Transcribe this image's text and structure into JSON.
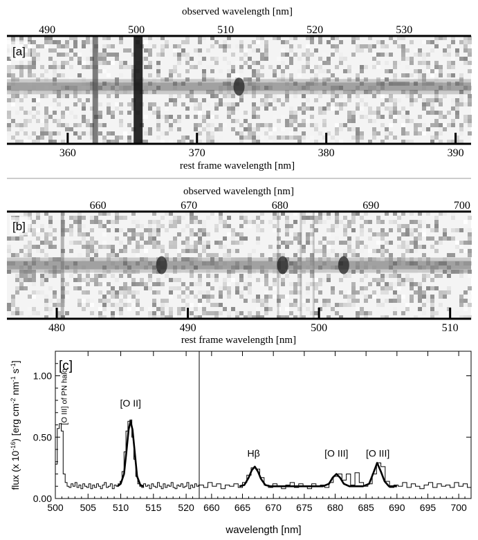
{
  "figure": {
    "panel_a": {
      "label": "[a]",
      "top_axis_label": "observed wavelength [nm]",
      "bottom_axis_label": "rest frame wavelength [nm]",
      "observed_ticks": [
        490,
        500,
        510,
        520,
        530
      ],
      "rest_ticks": [
        360,
        370,
        380,
        390
      ],
      "observed_range": [
        485.5,
        537.5
      ],
      "rest_range": [
        355.3,
        391.2
      ],
      "sky_line_columns_observed": [
        495.4,
        500.2
      ],
      "emission_observed": [
        511.5
      ],
      "noise_seed": 7
    },
    "panel_b": {
      "label": "[b]",
      "top_axis_label": "observed wavelength [nm]",
      "bottom_axis_label": "rest frame wavelength [nm]",
      "observed_ticks": [
        660,
        670,
        680,
        690,
        700
      ],
      "rest_ticks": [
        480,
        490,
        500,
        510
      ],
      "observed_range": [
        650.0,
        701.0
      ],
      "rest_range": [
        476.2,
        511.6
      ],
      "sky_line_columns_observed": [
        656.1,
        679.8,
        682.3,
        683.7
      ],
      "emission_observed": [
        667.0,
        680.3,
        687.0
      ],
      "noise_seed": 23
    },
    "divider_color": "#999999"
  },
  "chart_data": {
    "type": "line",
    "label": "[c]",
    "xlabel": "wavelength [nm]",
    "ylabel": "flux (x 10-16) [erg cm-2 nm-1 s-1]",
    "ylabel_parts": {
      "pre": "flux (x 10",
      "exp1": "-16",
      "mid1": ") [erg cm",
      "exp2": "-2",
      "mid2": " nm",
      "exp3": "-1",
      "mid3": " s",
      "exp4": "-1",
      "post": "]"
    },
    "ylim": [
      0,
      1.2
    ],
    "yticks": [
      "0.00",
      "0.50",
      "1.00"
    ],
    "ytick_values": [
      0,
      0.5,
      1.0
    ],
    "grid": false,
    "left_panel": {
      "xlim": [
        500,
        522
      ],
      "xticks": [
        500,
        505,
        510,
        515,
        520
      ],
      "annotations": [
        {
          "text": "[O II]",
          "x": 511.5,
          "y": 0.75
        }
      ],
      "vertical_annotation": {
        "text": "[O III] of PN halo",
        "x": 501.3,
        "y": 0.6
      },
      "fit_line": {
        "x": [
          509.5,
          510.0,
          510.5,
          510.9,
          511.2,
          511.5,
          511.8,
          512.1,
          512.5,
          513.0,
          513.5
        ],
        "y": [
          0.1,
          0.12,
          0.2,
          0.4,
          0.56,
          0.63,
          0.56,
          0.4,
          0.18,
          0.11,
          0.1
        ]
      },
      "step_spectrum": {
        "x": [
          500.0,
          500.3,
          500.6,
          500.9,
          501.2,
          501.5,
          501.8,
          502.1,
          502.4,
          502.7,
          503.0,
          503.3,
          503.6,
          503.9,
          504.2,
          504.5,
          504.8,
          505.1,
          505.4,
          505.7,
          506.0,
          506.3,
          506.6,
          506.9,
          507.2,
          507.5,
          507.8,
          508.1,
          508.4,
          508.7,
          509.0,
          509.3,
          509.6,
          509.9,
          510.2,
          510.5,
          510.8,
          511.1,
          511.4,
          511.7,
          512.0,
          512.3,
          512.6,
          512.9,
          513.2,
          513.5,
          513.8,
          514.1,
          514.4,
          514.7,
          515.0,
          515.3,
          515.6,
          515.9,
          516.2,
          516.5,
          516.8,
          517.1,
          517.4,
          517.7,
          518.0,
          518.3,
          518.6,
          518.9,
          519.2,
          519.5,
          519.8,
          520.1,
          520.4,
          520.7,
          521.0,
          521.3,
          521.6,
          521.9
        ],
        "y": [
          0.28,
          0.57,
          0.61,
          0.55,
          0.2,
          0.13,
          0.1,
          0.09,
          0.12,
          0.1,
          0.13,
          0.09,
          0.11,
          0.08,
          0.12,
          0.1,
          0.09,
          0.12,
          0.08,
          0.11,
          0.09,
          0.12,
          0.1,
          0.08,
          0.11,
          0.13,
          0.09,
          0.1,
          0.12,
          0.08,
          0.11,
          0.1,
          0.12,
          0.14,
          0.22,
          0.38,
          0.55,
          0.63,
          0.64,
          0.5,
          0.32,
          0.18,
          0.12,
          0.1,
          0.09,
          0.12,
          0.1,
          0.11,
          0.08,
          0.12,
          0.1,
          0.09,
          0.13,
          0.1,
          0.08,
          0.12,
          0.09,
          0.11,
          0.1,
          0.13,
          0.09,
          0.08,
          0.11,
          0.1,
          0.12,
          0.09,
          0.1,
          0.13,
          0.08,
          0.11,
          0.09,
          0.12,
          0.1,
          0.11
        ]
      }
    },
    "right_panel": {
      "xlim": [
        658,
        702
      ],
      "xticks": [
        660,
        665,
        670,
        675,
        680,
        685,
        690,
        695,
        700
      ],
      "annotations": [
        {
          "text": "Hβ",
          "x": 666.8,
          "y": 0.34
        },
        {
          "text": "[O III]",
          "x": 680.2,
          "y": 0.34
        },
        {
          "text": "[O III]",
          "x": 686.9,
          "y": 0.34
        }
      ],
      "fit_line": {
        "x": [
          664.5,
          665.3,
          666.0,
          666.5,
          667.0,
          667.5,
          668.0,
          668.7,
          669.5,
          670.0,
          678.0,
          679.0,
          679.6,
          680.2,
          680.8,
          681.4,
          682.3,
          684.5,
          685.5,
          686.2,
          686.8,
          687.4,
          688.0,
          688.7,
          690.0
        ],
        "y": [
          0.1,
          0.11,
          0.17,
          0.23,
          0.26,
          0.22,
          0.16,
          0.11,
          0.1,
          0.1,
          0.1,
          0.12,
          0.17,
          0.2,
          0.17,
          0.12,
          0.1,
          0.1,
          0.12,
          0.21,
          0.29,
          0.22,
          0.14,
          0.1,
          0.1
        ]
      },
      "step_spectrum": {
        "x": [
          658.0,
          658.7,
          659.4,
          660.1,
          660.8,
          661.5,
          662.2,
          662.9,
          663.6,
          664.3,
          665.0,
          665.7,
          666.4,
          667.1,
          667.8,
          668.5,
          669.2,
          669.9,
          670.6,
          671.3,
          672.0,
          672.7,
          673.4,
          674.1,
          674.8,
          675.5,
          676.2,
          676.9,
          677.6,
          678.3,
          679.0,
          679.7,
          680.4,
          681.1,
          681.8,
          682.5,
          683.2,
          683.9,
          684.6,
          685.3,
          686.0,
          686.7,
          687.4,
          688.1,
          688.8,
          689.5,
          690.2,
          690.9,
          691.6,
          692.3,
          693.0,
          693.7,
          694.4,
          695.1,
          695.8,
          696.5,
          697.2,
          697.9,
          698.6,
          699.3,
          700.0,
          700.7,
          701.4
        ],
        "y": [
          0.11,
          0.09,
          0.13,
          0.1,
          0.12,
          0.08,
          0.11,
          0.1,
          0.12,
          0.09,
          0.13,
          0.19,
          0.25,
          0.24,
          0.17,
          0.11,
          0.09,
          0.12,
          0.1,
          0.08,
          0.11,
          0.13,
          0.09,
          0.12,
          0.1,
          0.08,
          0.12,
          0.1,
          0.11,
          0.09,
          0.13,
          0.18,
          0.2,
          0.15,
          0.2,
          0.11,
          0.21,
          0.13,
          0.1,
          0.12,
          0.2,
          0.29,
          0.26,
          0.14,
          0.09,
          0.11,
          0.1,
          0.13,
          0.09,
          0.12,
          0.1,
          0.08,
          0.11,
          0.13,
          0.09,
          0.12,
          0.1,
          0.11,
          0.09,
          0.13,
          0.1,
          0.12,
          0.09
        ]
      }
    }
  }
}
